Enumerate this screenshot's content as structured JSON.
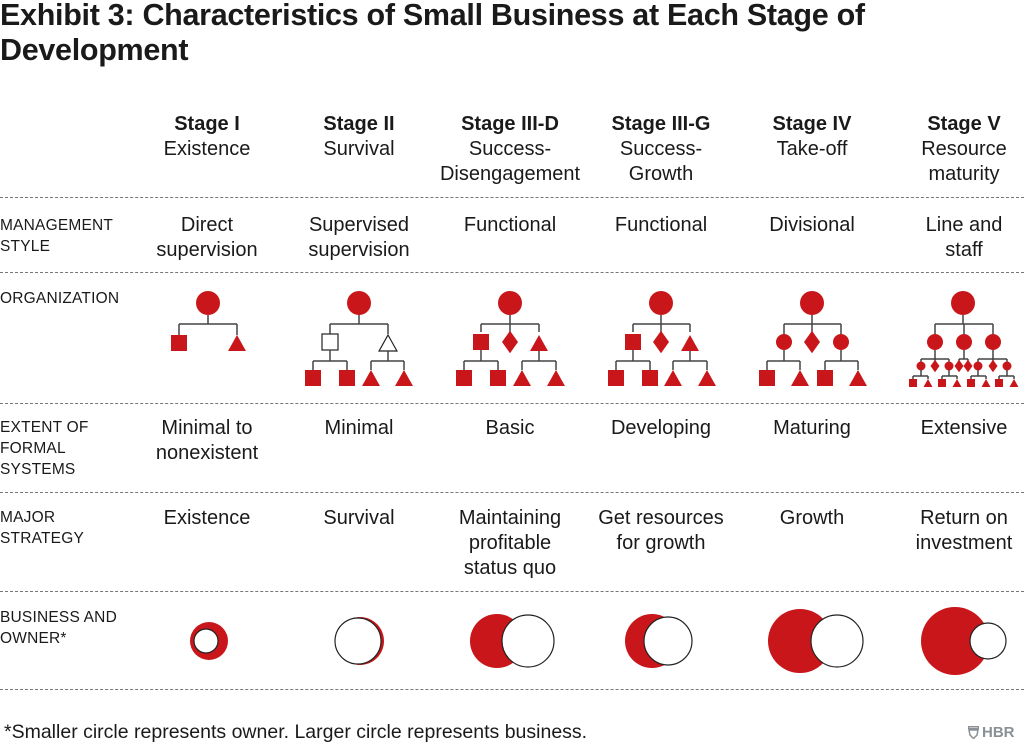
{
  "title": "Exhibit 3: Characteristics of Small Business at Each Stage of Development",
  "stages": [
    {
      "stage": "Stage I",
      "name": "Existence"
    },
    {
      "stage": "Stage II",
      "name": "Survival"
    },
    {
      "stage": "Stage III-D",
      "name": "Success-Disengagement"
    },
    {
      "stage": "Stage III-G",
      "name": "Success-Growth"
    },
    {
      "stage": "Stage IV",
      "name": "Take-off"
    },
    {
      "stage": "Stage V",
      "name": "Resource maturity"
    }
  ],
  "rows": {
    "management": {
      "label": "MANAGEMENT STYLE",
      "values": [
        "Direct supervision",
        "Supervised supervision",
        "Functional",
        "Functional",
        "Divisional",
        "Line and staff"
      ]
    },
    "organization": {
      "label": "ORGANIZATION"
    },
    "systems": {
      "label": "EXTENT OF FORMAL SYSTEMS",
      "values": [
        "Minimal to nonexistent",
        "Minimal",
        "Basic",
        "Developing",
        "Maturing",
        "Extensive"
      ]
    },
    "strategy": {
      "label": "MAJOR STRATEGY",
      "values": [
        "Existence",
        "Survival",
        "Maintaining profitable status quo",
        "Get resources for growth",
        "Growth",
        "Return on investment"
      ]
    },
    "owner": {
      "label": "BUSINESS AND OWNER*"
    }
  },
  "footnote": "*Smaller circle represents owner. Larger circle represents business.",
  "logo": "HBR",
  "colors": {
    "accent": "#c8161a",
    "text": "#1a1a1a",
    "rule": "#777777",
    "logo": "#8a9095"
  }
}
